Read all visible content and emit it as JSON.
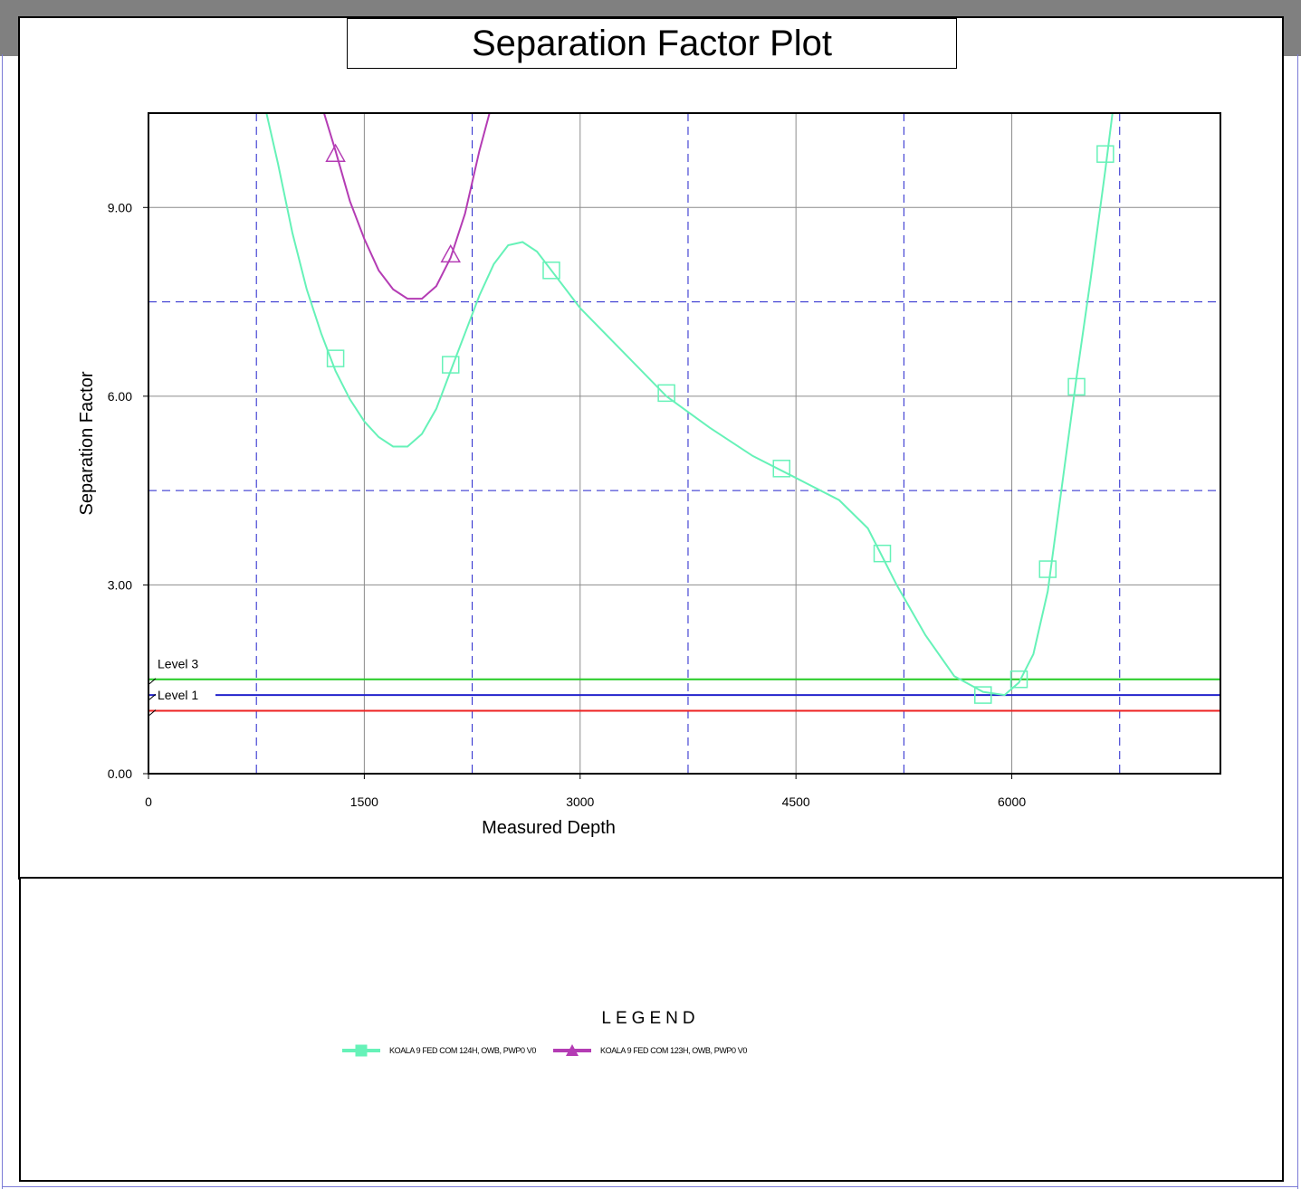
{
  "window": {
    "title": "Separation Factor Plot"
  },
  "legend": {
    "title": "LEGEND",
    "entries": [
      {
        "label": "KOALA 9 FED COM 124H, OWB, PWP0 V0",
        "color": "#66f2b8",
        "marker": "square"
      },
      {
        "label": "KOALA 9 FED COM 123H, OWB, PWP0 V0",
        "color": "#b43cb4",
        "marker": "triangle"
      }
    ]
  },
  "chart_data": {
    "type": "line",
    "title": "Separation Factor Plot",
    "xlabel": "Measured Depth",
    "ylabel": "Separation Factor",
    "xlim": [
      0,
      7450
    ],
    "ylim": [
      0,
      10.5
    ],
    "x_ticks": [
      0,
      1500,
      3000,
      4500,
      6000
    ],
    "x_tick_labels": [
      "0",
      "1500",
      "3000",
      "4500",
      "6000"
    ],
    "y_ticks": [
      0,
      3,
      6,
      9
    ],
    "y_tick_labels": [
      "0.00",
      "3.00",
      "6.00",
      "9.00"
    ],
    "y_minor_grid": [
      4.5,
      7.5
    ],
    "x_minor_grid": [
      750,
      2250,
      3750,
      5250,
      6750
    ],
    "grid": true,
    "reference_lines": [
      {
        "label": "Level 3",
        "y": 1.5,
        "color": "#22cc22"
      },
      {
        "label": "Level 1",
        "y": 1.25,
        "color": "#2222cc"
      },
      {
        "label": "",
        "y": 1.0,
        "color": "#ee2222"
      }
    ],
    "series": [
      {
        "name": "KOALA 9 FED COM 124H, OWB, PWP0 V0",
        "color": "#66f2b8",
        "marker": "square",
        "x": [
          820,
          900,
          1000,
          1100,
          1200,
          1300,
          1400,
          1500,
          1600,
          1700,
          1800,
          1900,
          2000,
          2100,
          2200,
          2300,
          2400,
          2500,
          2600,
          2700,
          2800,
          3000,
          3300,
          3600,
          3900,
          4200,
          4500,
          4800,
          5000,
          5200,
          5400,
          5600,
          5800,
          5950,
          6050,
          6150,
          6250,
          6350,
          6450,
          6550,
          6650,
          6700
        ],
        "y": [
          10.5,
          9.7,
          8.6,
          7.7,
          7.0,
          6.4,
          5.95,
          5.6,
          5.35,
          5.2,
          5.2,
          5.4,
          5.8,
          6.4,
          7.0,
          7.6,
          8.1,
          8.4,
          8.45,
          8.3,
          8.0,
          7.4,
          6.7,
          6.0,
          5.5,
          5.05,
          4.7,
          4.35,
          3.9,
          3.0,
          2.2,
          1.55,
          1.3,
          1.25,
          1.45,
          1.9,
          2.9,
          4.6,
          6.3,
          7.9,
          9.6,
          10.5
        ],
        "markers_x": [
          1300,
          2100,
          2800,
          3600,
          4400,
          5100,
          5800,
          6050,
          6250,
          6450,
          6650
        ],
        "markers_y": [
          6.6,
          6.5,
          8.0,
          6.05,
          4.85,
          3.5,
          1.25,
          1.5,
          3.25,
          6.15,
          9.85
        ]
      },
      {
        "name": "KOALA 9 FED COM 123H, OWB, PWP0 V0",
        "color": "#b43cb4",
        "marker": "triangle",
        "x": [
          1220,
          1300,
          1400,
          1500,
          1600,
          1700,
          1800,
          1900,
          2000,
          2100,
          2200,
          2300,
          2370
        ],
        "y": [
          10.5,
          9.9,
          9.1,
          8.5,
          8.0,
          7.7,
          7.55,
          7.55,
          7.75,
          8.2,
          8.9,
          9.9,
          10.5
        ],
        "markers_x": [
          1300,
          2100
        ],
        "markers_y": [
          9.85,
          8.25
        ]
      }
    ]
  }
}
